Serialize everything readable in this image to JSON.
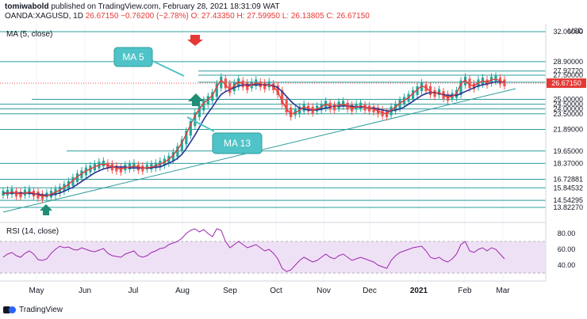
{
  "header": {
    "publisher": "tomiwabold",
    "published_text": "published on TradingView.com, February 28, 2021 18:31:09 WAT",
    "symbol": "OANDA:XAGUSD, 1D",
    "last": "26.67150",
    "change": "−0.76200 (−2.78%)",
    "open": "O: 27.43350",
    "high": "H: 27.59950",
    "low": "L: 26.13805",
    "close": "C: 26.67150"
  },
  "legends": {
    "ma": "MA (5, close)",
    "rsi": "RSI (14, close)"
  },
  "annotations": {
    "ma5": "MA 5",
    "ma13": "MA 13"
  },
  "footer": {
    "brand": "TradingView"
  },
  "colors": {
    "up": "#26a69a",
    "down": "#ef5350",
    "ma5": "#e53935",
    "ma13": "#283593",
    "level": "#2e9c9c",
    "rsi": "#9c27b0",
    "rsi_band": "#efe1f5",
    "price_tag": "#e53935",
    "callout": "#4fc3c7",
    "arrow_up": "#1f8e74"
  },
  "chart_data": [
    {
      "type": "candlestick",
      "title": "OANDA:XAGUSD, 1D",
      "currency": "USD",
      "x_ticks": [
        "May",
        "Jun",
        "Jul",
        "Aug",
        "Sep",
        "Oct",
        "Nov",
        "Dec",
        "2021",
        "Feb",
        "Mar"
      ],
      "y_range": [
        13.0,
        32.0
      ],
      "price_levels": [
        "32.00000",
        "28.90000",
        "27.92720",
        "27.50000",
        "26.77281",
        "25.00000",
        "24.50000",
        "24.00000",
        "23.50000",
        "21.89000",
        "19.65000",
        "18.37000",
        "16.72881",
        "15.84532",
        "14.54295",
        "13.82270"
      ],
      "current_price_label": "26.67150",
      "series": [
        {
          "name": "MA 5",
          "values": [
            15.2,
            15.3,
            15.4,
            15.3,
            15.2,
            15.3,
            15.4,
            15.3,
            15.1,
            15.0,
            15.0,
            15.2,
            15.4,
            15.6,
            15.9,
            16.2,
            16.6,
            17.0,
            17.3,
            17.6,
            17.8,
            18.0,
            18.2,
            18.3,
            18.2,
            18.0,
            17.9,
            17.8,
            17.9,
            18.0,
            18.1,
            18.0,
            17.9,
            17.9,
            18.0,
            18.1,
            18.3,
            18.5,
            18.8,
            19.2,
            19.8,
            20.5,
            21.4,
            22.4,
            23.3,
            24.0,
            24.6,
            25.0,
            25.4,
            26.3,
            27.0,
            26.5,
            26.0,
            26.4,
            26.8,
            26.6,
            26.3,
            26.5,
            26.7,
            26.6,
            26.4,
            26.5,
            26.3,
            25.8,
            24.8,
            24.0,
            23.5,
            23.6,
            23.9,
            24.2,
            24.1,
            23.9,
            24.0,
            24.2,
            24.5,
            24.3,
            24.2,
            24.4,
            24.5,
            24.3,
            24.1,
            24.2,
            24.3,
            24.2,
            24.1,
            24.0,
            23.8,
            23.6,
            23.5,
            23.9,
            24.2,
            24.6,
            24.9,
            25.2,
            25.6,
            26.0,
            26.4,
            26.2,
            25.8,
            25.6,
            25.7,
            25.4,
            25.2,
            25.3,
            25.6,
            26.6,
            27.0,
            26.5,
            26.4,
            26.7,
            26.9,
            26.8,
            27.0,
            27.1,
            26.9,
            26.7
          ]
        },
        {
          "name": "MA 13",
          "values": [
            15.3,
            15.3,
            15.3,
            15.3,
            15.3,
            15.3,
            15.3,
            15.2,
            15.2,
            15.1,
            15.1,
            15.1,
            15.2,
            15.3,
            15.5,
            15.7,
            15.9,
            16.2,
            16.5,
            16.8,
            17.1,
            17.4,
            17.6,
            17.8,
            17.9,
            18.0,
            18.0,
            18.0,
            18.0,
            17.9,
            17.9,
            17.9,
            17.9,
            17.9,
            17.9,
            18.0,
            18.0,
            18.2,
            18.4,
            18.6,
            18.9,
            19.3,
            19.9,
            20.6,
            21.3,
            22.1,
            22.9,
            23.6,
            24.2,
            24.9,
            25.5,
            25.8,
            26.0,
            26.2,
            26.4,
            26.5,
            26.5,
            26.5,
            26.5,
            26.5,
            26.5,
            26.5,
            26.4,
            26.2,
            25.8,
            25.3,
            24.8,
            24.4,
            24.1,
            24.0,
            23.9,
            23.9,
            23.9,
            24.0,
            24.1,
            24.2,
            24.3,
            24.3,
            24.3,
            24.3,
            24.3,
            24.2,
            24.2,
            24.2,
            24.1,
            24.1,
            24.0,
            23.9,
            23.8,
            23.8,
            23.9,
            24.0,
            24.2,
            24.5,
            24.8,
            25.1,
            25.4,
            25.6,
            25.7,
            25.7,
            25.6,
            25.5,
            25.4,
            25.4,
            25.4,
            25.6,
            25.8,
            26.0,
            26.2,
            26.4,
            26.5,
            26.6,
            26.7,
            26.8,
            26.8,
            26.8
          ]
        }
      ]
    },
    {
      "type": "line",
      "title": "RSI (14, close)",
      "y_ticks": [
        "80.00",
        "60.00",
        "40.00"
      ],
      "y_range": [
        22,
        92
      ],
      "bands": [
        30,
        70
      ],
      "series": [
        {
          "name": "RSI",
          "values": [
            50,
            54,
            56,
            52,
            50,
            55,
            58,
            54,
            47,
            46,
            48,
            55,
            60,
            64,
            62,
            63,
            60,
            59,
            62,
            60,
            58,
            57,
            59,
            61,
            55,
            52,
            51,
            50,
            54,
            56,
            58,
            52,
            50,
            52,
            56,
            58,
            61,
            62,
            66,
            68,
            70,
            74,
            80,
            84,
            86,
            82,
            85,
            80,
            76,
            86,
            84,
            70,
            62,
            66,
            70,
            66,
            62,
            64,
            66,
            62,
            58,
            60,
            55,
            48,
            36,
            32,
            34,
            40,
            46,
            50,
            47,
            44,
            46,
            50,
            54,
            50,
            48,
            52,
            54,
            50,
            46,
            48,
            50,
            48,
            46,
            44,
            40,
            38,
            36,
            46,
            52,
            56,
            58,
            60,
            62,
            63,
            64,
            58,
            50,
            48,
            50,
            46,
            44,
            48,
            54,
            66,
            70,
            58,
            56,
            60,
            62,
            58,
            62,
            60,
            54,
            48
          ]
        }
      ]
    }
  ]
}
